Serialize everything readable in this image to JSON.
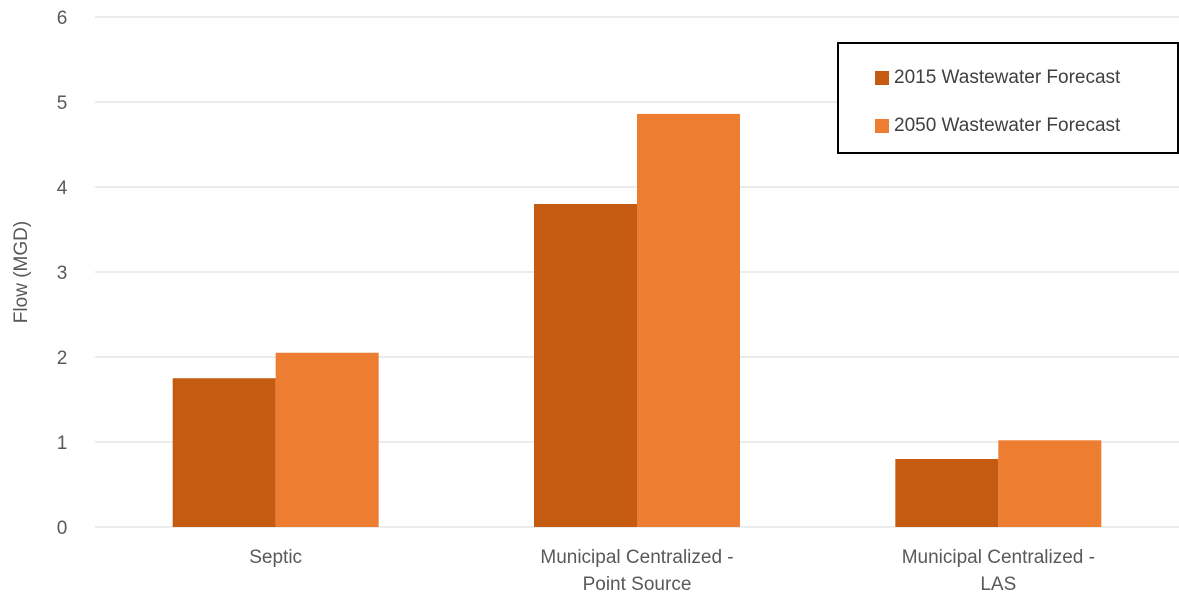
{
  "chart_data": {
    "type": "bar",
    "title": "",
    "xlabel": "",
    "ylabel": "Flow (MGD)",
    "ylim": [
      0,
      6
    ],
    "yticks": [
      "0",
      "1",
      "2",
      "3",
      "4",
      "5",
      "6"
    ],
    "grid": true,
    "legend_position": "top-right",
    "categories": [
      [
        "Septic"
      ],
      [
        "Municipal Centralized -",
        "Point Source"
      ],
      [
        "Municipal Centralized -",
        "LAS"
      ]
    ],
    "series": [
      {
        "name": "2015 Wastewater Forecast",
        "color": "#c55a11",
        "values": [
          1.75,
          3.8,
          0.8
        ]
      },
      {
        "name": "2050 Wastewater Forecast",
        "color": "#ed7d31",
        "values": [
          2.05,
          4.86,
          1.02
        ]
      }
    ]
  }
}
